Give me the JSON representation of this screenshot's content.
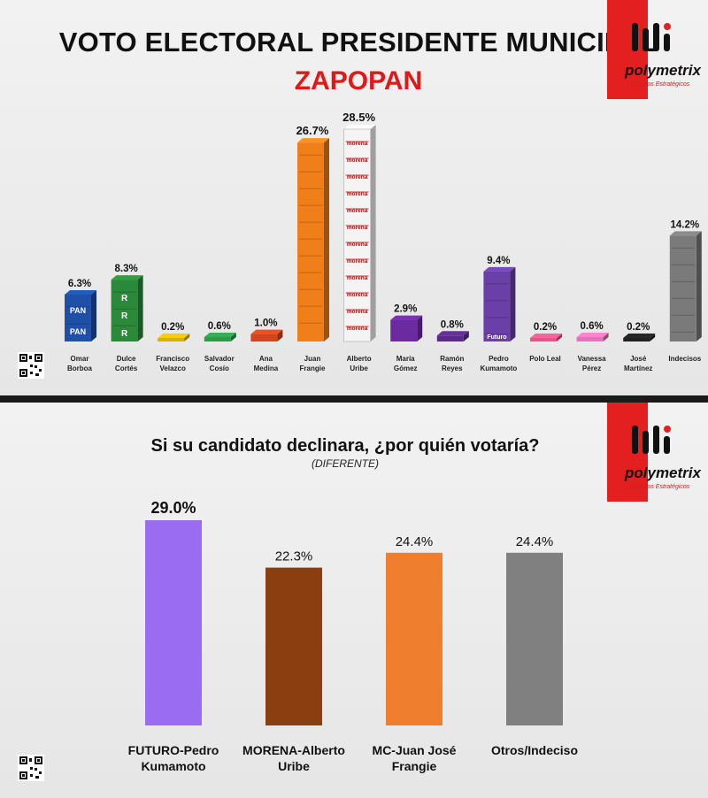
{
  "brand": {
    "name": "polymetrix",
    "tagline": "Estudios Estratégicos"
  },
  "panel1": {
    "title": "VOTO ELECTORAL PRESIDENTE MUNICIPAL",
    "subtitle": "ZAPOPAN"
  },
  "panel2": {
    "title": "Si su candidato declinara, ¿por quién votaría?",
    "subtitle": "(DIFERENTE)"
  },
  "chart_data": [
    {
      "type": "bar",
      "title": "VOTO ELECTORAL PRESIDENTE MUNICIPAL",
      "subtitle": "ZAPOPAN",
      "categories": [
        [
          "Omar",
          "Borboa"
        ],
        [
          "Dulce",
          "Cortés"
        ],
        [
          "Francisco",
          "Velazco"
        ],
        [
          "Salvador",
          "Cosío"
        ],
        [
          "Ana",
          "Medina"
        ],
        [
          "Juan",
          "Frangie"
        ],
        [
          "Alberto",
          "Uribe"
        ],
        [
          "María",
          "Gómez"
        ],
        [
          "Ramón",
          "Reyes"
        ],
        [
          "Pedro",
          "Kumamoto"
        ],
        [
          "Polo Leal"
        ],
        [
          "Vanessa",
          "Pérez"
        ],
        [
          "José",
          "Martínez"
        ],
        [
          "Indecisos"
        ]
      ],
      "values": [
        6.3,
        8.3,
        0.2,
        0.6,
        1.0,
        26.7,
        28.5,
        2.9,
        0.8,
        9.4,
        0.2,
        0.6,
        0.2,
        14.2
      ],
      "labels": [
        "6.3%",
        "8.3%",
        "0.2%",
        "0.6%",
        "1.0%",
        "26.7%",
        "28.5%",
        "2.9%",
        "0.8%",
        "9.4%",
        "0.2%",
        "0.6%",
        "0.2%",
        "14.2%"
      ],
      "party_marks": [
        "PAN",
        "PRI",
        "",
        "",
        "",
        "",
        "morena",
        "",
        "",
        "Futuro",
        "",
        "",
        "",
        ""
      ],
      "colors": [
        "#1f4fa6",
        "#2a8a3a",
        "#d8b400",
        "#2e9a4a",
        "#d2451e",
        "#f07f1a",
        "#f4f4f4",
        "#6b2aa0",
        "#5a2a8a",
        "#6a3fa8",
        "#e0558a",
        "#e472b6",
        "#222222",
        "#7a7a7a"
      ],
      "grid": false
    },
    {
      "type": "bar",
      "title": "Si su candidato declinara, ¿por quién votaría?",
      "subtitle": "(DIFERENTE)",
      "categories": [
        [
          "FUTURO-Pedro",
          "Kumamoto"
        ],
        [
          "MORENA-Alberto",
          "Uribe"
        ],
        [
          "MC-Juan José",
          "Frangie"
        ],
        [
          "Otros/Indeciso"
        ]
      ],
      "values": [
        29.0,
        22.3,
        24.4,
        24.4
      ],
      "labels": [
        "29.0%",
        "22.3%",
        "24.4%",
        "24.4%"
      ],
      "colors": [
        "#9a6cf2",
        "#8b3e10",
        "#ef7e2e",
        "#808080"
      ],
      "grid": false
    }
  ]
}
